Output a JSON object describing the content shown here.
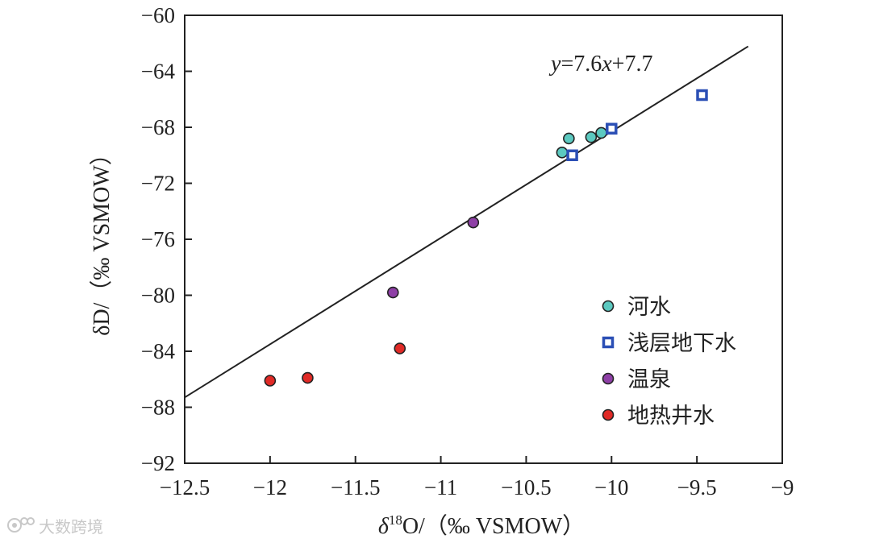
{
  "chart_data": {
    "type": "scatter",
    "xlabel_parts": {
      "delta": "δ",
      "sup": "18",
      "rest": "O/（‰ VSMOW）"
    },
    "ylabel": "δD/（‰ VSMOW）",
    "xlim": [
      -12.5,
      -9
    ],
    "ylim": [
      -92,
      -60
    ],
    "xticks": [
      -12.5,
      -12,
      -11.5,
      -11,
      -10.5,
      -10,
      -9.5,
      -9
    ],
    "yticks": [
      -60,
      -64,
      -68,
      -72,
      -76,
      -80,
      -84,
      -88,
      -92
    ],
    "grid": false,
    "legend_position": "lower-right",
    "fit_line": {
      "label_parts": [
        "y",
        "=7.6",
        "x",
        "+7.7"
      ],
      "slope": 7.6,
      "intercept": 7.7,
      "x_range": [
        -12.5,
        -9.2
      ]
    },
    "series": [
      {
        "name": "河水",
        "marker": "circle",
        "color": "#5cc9c0",
        "points": [
          [
            -10.29,
            -69.8
          ],
          [
            -10.25,
            -68.8
          ],
          [
            -10.12,
            -68.7
          ],
          [
            -10.06,
            -68.4
          ]
        ]
      },
      {
        "name": "浅层地下水",
        "marker": "square",
        "color": "#2b4fb5",
        "points": [
          [
            -10.23,
            -70.0
          ],
          [
            -10.0,
            -68.1
          ],
          [
            -9.47,
            -65.7
          ]
        ]
      },
      {
        "name": "温泉",
        "marker": "circle",
        "color": "#8e3fa6",
        "points": [
          [
            -10.81,
            -74.8
          ],
          [
            -11.28,
            -79.8
          ]
        ]
      },
      {
        "name": "地热井水",
        "marker": "circle",
        "color": "#e02a26",
        "points": [
          [
            -12.0,
            -86.1
          ],
          [
            -11.78,
            -85.9
          ],
          [
            -11.24,
            -83.8
          ]
        ]
      }
    ]
  },
  "watermark": {
    "text": "大数跨境",
    "icon": "weibo-style-logo-icon"
  }
}
